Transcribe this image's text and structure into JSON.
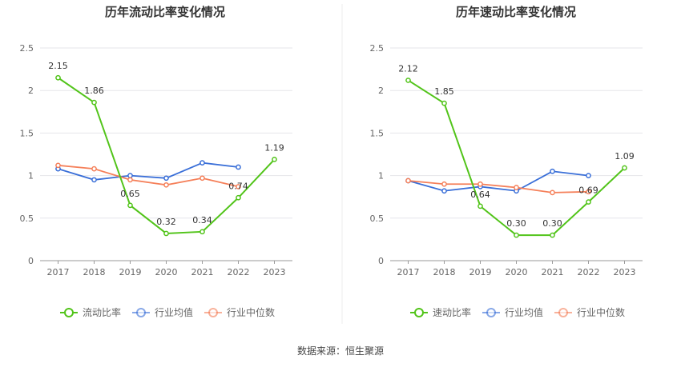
{
  "chart_data": [
    {
      "type": "line",
      "title": "历年流动比率变化情况",
      "categories": [
        "2017",
        "2018",
        "2019",
        "2020",
        "2021",
        "2022",
        "2023"
      ],
      "ylim": [
        0,
        2.5
      ],
      "yticks": [
        "0",
        "0.5",
        "1",
        "1.5",
        "2",
        "2.5"
      ],
      "grid": true,
      "legend_position": "bottom",
      "series": [
        {
          "name": "流动比率",
          "color": "#52c41a",
          "values": [
            2.15,
            1.86,
            0.65,
            0.32,
            0.34,
            0.74,
            1.19
          ],
          "labels": [
            "2.15",
            "1.86",
            "0.65",
            "0.32",
            "0.34",
            "0.74",
            "1.19"
          ]
        },
        {
          "name": "行业均值",
          "color": "#3a6fd8",
          "values": [
            1.08,
            0.95,
            1.0,
            0.97,
            1.15,
            1.1,
            null
          ]
        },
        {
          "name": "行业中位数",
          "color": "#f5805a",
          "values": [
            1.12,
            1.08,
            0.95,
            0.89,
            0.97,
            0.87,
            null
          ]
        }
      ]
    },
    {
      "type": "line",
      "title": "历年速动比率变化情况",
      "categories": [
        "2017",
        "2018",
        "2019",
        "2020",
        "2021",
        "2022",
        "2023"
      ],
      "ylim": [
        0,
        2.5
      ],
      "yticks": [
        "0",
        "0.5",
        "1",
        "1.5",
        "2",
        "2.5"
      ],
      "grid": true,
      "legend_position": "bottom",
      "series": [
        {
          "name": "速动比率",
          "color": "#52c41a",
          "values": [
            2.12,
            1.85,
            0.64,
            0.3,
            0.3,
            0.69,
            1.09
          ],
          "labels": [
            "2.12",
            "1.85",
            "0.64",
            "0.30",
            "0.30",
            "0.69",
            "1.09"
          ]
        },
        {
          "name": "行业均值",
          "color": "#3a6fd8",
          "values": [
            0.94,
            0.82,
            0.87,
            0.82,
            1.05,
            1.0,
            null
          ]
        },
        {
          "name": "行业中位数",
          "color": "#f5805a",
          "values": [
            0.94,
            0.9,
            0.9,
            0.86,
            0.8,
            0.81,
            null
          ]
        }
      ]
    }
  ],
  "footer": {
    "source": "数据来源：恒生聚源"
  }
}
